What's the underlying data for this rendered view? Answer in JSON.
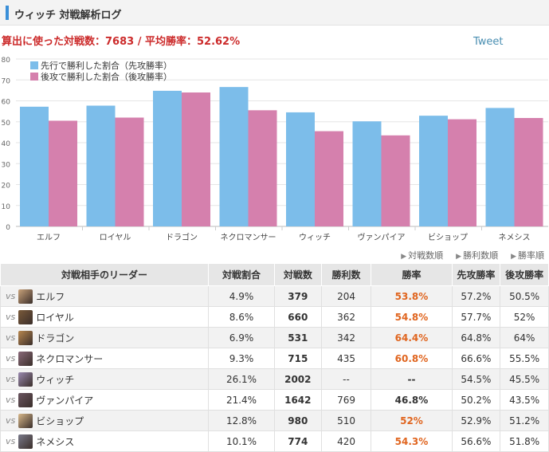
{
  "header": {
    "title": "ウィッチ 対戦解析ログ"
  },
  "stats": {
    "text": "算出に使った対戦数：7683 / 平均勝率：52.62%"
  },
  "tweet_label": "Tweet",
  "colors": {
    "first": "#7cbdea",
    "second": "#d580ad",
    "win_highlight": "#e0651f",
    "accent_bar": "#3a8fd8"
  },
  "chart_data": {
    "type": "bar",
    "categories": [
      "エルフ",
      "ロイヤル",
      "ドラゴン",
      "ネクロマンサー",
      "ウィッチ",
      "ヴァンパイア",
      "ビショップ",
      "ネメシス"
    ],
    "series": [
      {
        "name": "先行で勝利した割合（先攻勝率）",
        "values": [
          57.2,
          57.7,
          64.8,
          66.6,
          54.5,
          50.2,
          52.9,
          56.6
        ]
      },
      {
        "name": "後攻で勝利した割合（後攻勝率）",
        "values": [
          50.5,
          52,
          64,
          55.5,
          45.5,
          43.5,
          51.2,
          51.8
        ]
      }
    ],
    "yticks": [
      0,
      10,
      20,
      30,
      40,
      50,
      60,
      70,
      80
    ],
    "ylim": [
      0,
      80
    ],
    "grid": true,
    "legend": "top-left"
  },
  "sort_links": [
    "対戦数順",
    "勝利数順",
    "勝率順"
  ],
  "table": {
    "headers": [
      "対戦相手のリーダー",
      "対戦割合",
      "対戦数",
      "勝利数",
      "勝率",
      "先攻勝率",
      "後攻勝率"
    ],
    "vs_label": "vs",
    "rows": [
      {
        "leader": "エルフ",
        "share": "4.9%",
        "games": "379",
        "wins": "204",
        "winrate": "53.8%",
        "first": "57.2%",
        "second": "50.5%",
        "avatar": "#c9a27a"
      },
      {
        "leader": "ロイヤル",
        "share": "8.6%",
        "games": "660",
        "wins": "362",
        "winrate": "54.8%",
        "first": "57.7%",
        "second": "52%",
        "avatar": "#7a5a3a"
      },
      {
        "leader": "ドラゴン",
        "share": "6.9%",
        "games": "531",
        "wins": "342",
        "winrate": "64.4%",
        "first": "64.8%",
        "second": "64%",
        "avatar": "#b8874e"
      },
      {
        "leader": "ネクロマンサー",
        "share": "9.3%",
        "games": "715",
        "wins": "435",
        "winrate": "60.8%",
        "first": "66.6%",
        "second": "55.5%",
        "avatar": "#8a6a7a"
      },
      {
        "leader": "ウィッチ",
        "share": "26.1%",
        "games": "2002",
        "wins": "--",
        "winrate": "--",
        "first": "54.5%",
        "second": "45.5%",
        "avatar": "#9a8ab0"
      },
      {
        "leader": "ヴァンパイア",
        "share": "21.4%",
        "games": "1642",
        "wins": "769",
        "winrate": "46.8%",
        "first": "50.2%",
        "second": "43.5%",
        "avatar": "#6a5560"
      },
      {
        "leader": "ビショップ",
        "share": "12.8%",
        "games": "980",
        "wins": "510",
        "winrate": "52%",
        "first": "52.9%",
        "second": "51.2%",
        "avatar": "#d8b88a"
      },
      {
        "leader": "ネメシス",
        "share": "10.1%",
        "games": "774",
        "wins": "420",
        "winrate": "54.3%",
        "first": "56.6%",
        "second": "51.8%",
        "avatar": "#7a7a8a"
      }
    ]
  }
}
